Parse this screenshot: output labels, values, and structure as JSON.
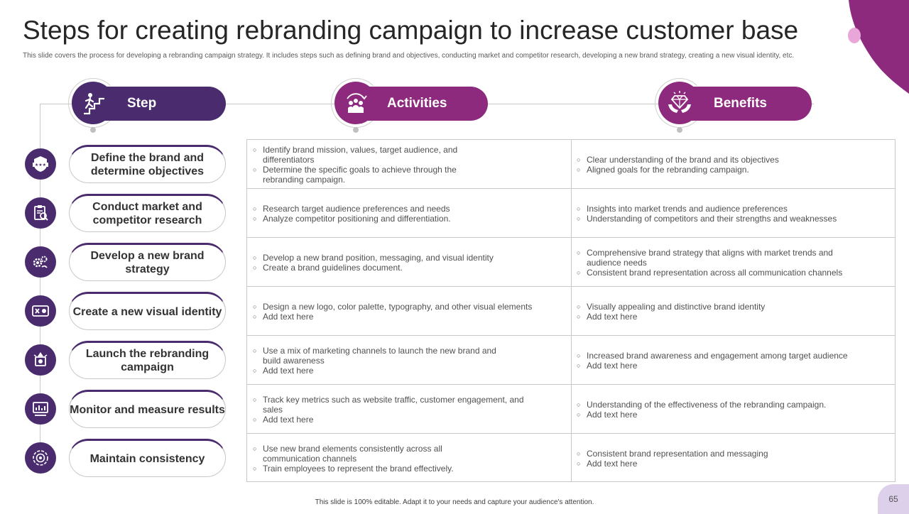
{
  "title": "Steps for creating rebranding campaign to increase customer base",
  "subtitle": "This slide covers the process for developing a rebranding campaign strategy. It includes steps such as defining brand and objectives, conducting market and competitor research, developing a new brand strategy, creating a new visual identity, etc.",
  "colors": {
    "primary": "#4a2c6e",
    "accent": "#8e2a7d",
    "corner": "#8e2a7d"
  },
  "headers": {
    "step": {
      "label": "Step",
      "icon": "stairs-climb-icon"
    },
    "activities": {
      "label": "Activities",
      "icon": "team-cycle-icon"
    },
    "benefits": {
      "label": "Benefits",
      "icon": "diamond-hands-icon"
    }
  },
  "rows": [
    {
      "step": "Define the brand and determine objectives",
      "icon": "badge-stars-icon",
      "activities": [
        "Identify brand mission, values, target audience, and differentiators",
        "Determine the specific goals to achieve through the rebranding campaign."
      ],
      "benefits": [
        "Clear understanding of the brand and its objectives",
        "Aligned goals for the rebranding campaign."
      ]
    },
    {
      "step": "Conduct market and competitor research",
      "icon": "clipboard-research-icon",
      "activities": [
        "Research target audience preferences and needs",
        "Analyze competitor positioning and differentiation."
      ],
      "benefits": [
        "Insights into market trends and audience preferences",
        "Understanding of competitors and their strengths and weaknesses"
      ]
    },
    {
      "step": "Develop a new brand strategy",
      "icon": "strategy-gears-icon",
      "activities": [
        "Develop a new brand position, messaging, and visual identity",
        "Create a brand guidelines document."
      ],
      "benefits": [
        "Comprehensive brand strategy that aligns with market trends and audience needs",
        "Consistent brand representation across all communication channels"
      ]
    },
    {
      "step": "Create a new visual identity",
      "icon": "visual-identity-icon",
      "activities": [
        "Design a new logo, color palette, typography,  and other visual elements",
        "Add text here"
      ],
      "benefits": [
        "Visually appealing and distinctive brand identity",
        "Add text here"
      ]
    },
    {
      "step": "Launch the rebranding campaign",
      "icon": "launch-icon",
      "activities": [
        "Use a mix of marketing channels to launch the new brand and build awareness",
        "Add text here"
      ],
      "benefits": [
        "Increased brand awareness and engagement among target audience",
        "Add text here"
      ]
    },
    {
      "step": "Monitor and measure results",
      "icon": "monitor-chart-icon",
      "activities": [
        "Track key metrics such as website traffic, customer engagement, and sales",
        "Add text here"
      ],
      "benefits": [
        "Understanding of the effectiveness of the rebranding campaign.",
        "Add text here"
      ]
    },
    {
      "step": "Maintain consistency",
      "icon": "target-cycle-icon",
      "activities": [
        "Use new brand elements consistently across all communication channels",
        "Train employees to represent the brand effectively."
      ],
      "benefits": [
        "Consistent brand representation and messaging",
        "Add text here"
      ]
    }
  ],
  "footer": "This slide is 100% editable. Adapt it to your needs and capture your audience's attention.",
  "page_number": "65"
}
